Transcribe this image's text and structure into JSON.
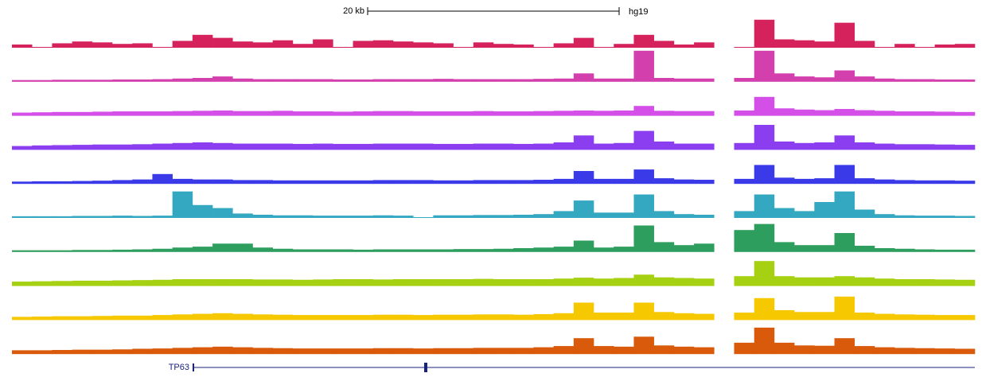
{
  "chart_data": {
    "type": "signal-tracks",
    "scale_label": "20 kb",
    "assembly": "hg19",
    "gene": "TP63",
    "series": [
      {
        "color": "#d6225c",
        "values": [
          8,
          0,
          12,
          18,
          15,
          10,
          12,
          0,
          20,
          40,
          30,
          18,
          15,
          22,
          10,
          25,
          0,
          20,
          22,
          18,
          15,
          12,
          0,
          15,
          10,
          8,
          0,
          12,
          30,
          0,
          10,
          40,
          20,
          8,
          15,
          null,
          0,
          90,
          25,
          22,
          18,
          80,
          20,
          0,
          10,
          0,
          8,
          10
        ]
      },
      {
        "color": "#d43fae",
        "values": [
          3,
          3,
          4,
          4,
          4,
          5,
          5,
          6,
          8,
          10,
          15,
          8,
          6,
          6,
          6,
          6,
          5,
          5,
          6,
          6,
          6,
          7,
          6,
          6,
          6,
          6,
          7,
          8,
          25,
          8,
          8,
          100,
          10,
          8,
          8,
          null,
          10,
          100,
          25,
          15,
          12,
          35,
          15,
          8,
          6,
          6,
          5,
          5
        ]
      },
      {
        "color": "#d44ee8",
        "values": [
          8,
          9,
          10,
          10,
          11,
          12,
          12,
          12,
          13,
          14,
          15,
          13,
          13,
          14,
          12,
          12,
          11,
          12,
          13,
          13,
          12,
          12,
          12,
          13,
          12,
          12,
          13,
          14,
          15,
          14,
          15,
          30,
          14,
          13,
          13,
          null,
          15,
          60,
          22,
          18,
          16,
          20,
          16,
          14,
          12,
          12,
          11,
          10
        ]
      },
      {
        "color": "#8a3ef0",
        "values": [
          10,
          12,
          13,
          14,
          15,
          15,
          16,
          18,
          20,
          22,
          20,
          18,
          18,
          18,
          17,
          18,
          17,
          17,
          18,
          18,
          18,
          17,
          17,
          18,
          18,
          17,
          18,
          22,
          45,
          18,
          20,
          60,
          25,
          18,
          18,
          null,
          20,
          80,
          25,
          20,
          22,
          45,
          22,
          18,
          16,
          16,
          15,
          14
        ]
      },
      {
        "color": "#3a3ae8",
        "values": [
          5,
          6,
          6,
          7,
          8,
          10,
          12,
          30,
          14,
          12,
          12,
          10,
          10,
          9,
          9,
          9,
          9,
          9,
          10,
          10,
          10,
          9,
          9,
          10,
          10,
          10,
          11,
          14,
          40,
          14,
          14,
          45,
          16,
          12,
          11,
          null,
          14,
          60,
          18,
          14,
          16,
          60,
          16,
          12,
          10,
          9,
          9,
          8
        ]
      },
      {
        "color": "#34a8c0",
        "values": [
          3,
          3,
          3,
          4,
          4,
          5,
          4,
          5,
          85,
          40,
          30,
          12,
          8,
          6,
          6,
          5,
          5,
          5,
          6,
          5,
          0,
          6,
          6,
          7,
          7,
          8,
          10,
          20,
          55,
          15,
          15,
          75,
          20,
          10,
          8,
          null,
          20,
          75,
          30,
          20,
          50,
          85,
          25,
          10,
          6,
          5,
          5,
          4
        ]
      },
      {
        "color": "#2e9e5e",
        "values": [
          3,
          3,
          3,
          4,
          4,
          5,
          6,
          8,
          12,
          15,
          25,
          25,
          12,
          8,
          6,
          6,
          6,
          5,
          6,
          6,
          6,
          6,
          7,
          7,
          8,
          10,
          12,
          15,
          35,
          12,
          15,
          85,
          30,
          20,
          25,
          null,
          70,
          90,
          30,
          20,
          20,
          60,
          18,
          10,
          8,
          6,
          5,
          5
        ]
      },
      {
        "color": "#a6d012",
        "values": [
          12,
          13,
          14,
          15,
          15,
          16,
          17,
          18,
          20,
          20,
          20,
          20,
          19,
          19,
          18,
          19,
          20,
          20,
          19,
          20,
          20,
          20,
          20,
          21,
          20,
          20,
          20,
          22,
          25,
          22,
          24,
          35,
          26,
          24,
          22,
          null,
          30,
          80,
          30,
          26,
          26,
          30,
          26,
          22,
          20,
          20,
          19,
          18
        ]
      },
      {
        "color": "#f5c800",
        "values": [
          8,
          9,
          10,
          10,
          11,
          12,
          12,
          14,
          16,
          18,
          20,
          18,
          16,
          15,
          14,
          14,
          14,
          14,
          15,
          15,
          14,
          15,
          15,
          16,
          16,
          15,
          17,
          20,
          55,
          22,
          22,
          55,
          24,
          20,
          18,
          null,
          22,
          70,
          30,
          24,
          24,
          75,
          22,
          18,
          16,
          15,
          14,
          14
        ]
      },
      {
        "color": "#d95a0a",
        "values": [
          10,
          10,
          11,
          12,
          12,
          13,
          15,
          16,
          18,
          20,
          22,
          20,
          18,
          17,
          16,
          16,
          16,
          16,
          17,
          17,
          16,
          17,
          17,
          18,
          18,
          18,
          20,
          24,
          50,
          24,
          22,
          55,
          26,
          22,
          20,
          null,
          35,
          85,
          35,
          26,
          25,
          50,
          24,
          20,
          18,
          17,
          16,
          15
        ]
      }
    ]
  }
}
